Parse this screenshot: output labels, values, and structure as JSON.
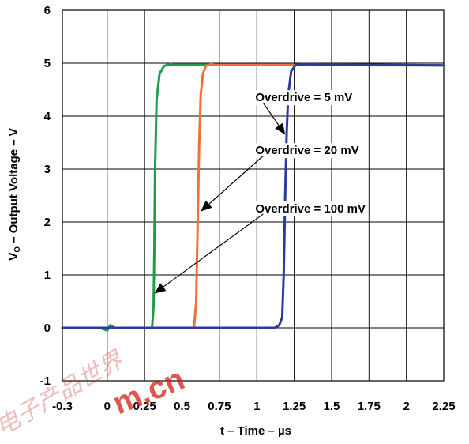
{
  "chart_data": {
    "type": "line",
    "xlabel": "t – Time – µs",
    "ylabel_main": "V",
    "ylabel_sub": "O",
    "ylabel_rest": " – Output Voltage – V",
    "xlim": [
      -0.3,
      2.25
    ],
    "ylim": [
      -1,
      6
    ],
    "x_ticks": [
      -0.3,
      0,
      0.25,
      0.5,
      0.75,
      1,
      1.25,
      1.5,
      1.75,
      2,
      2.25
    ],
    "x_tick_labels": [
      "-0.3",
      "0",
      "0.25",
      "0.5",
      "0.75",
      "1",
      "1.25",
      "1.5",
      "1.75",
      "2",
      "2.25"
    ],
    "y_ticks": [
      -1,
      0,
      1,
      2,
      3,
      4,
      5,
      6
    ],
    "y_tick_labels": [
      "-1",
      "0",
      "1",
      "2",
      "3",
      "4",
      "5",
      "6"
    ],
    "grid": true,
    "series": [
      {
        "color": "#1f9a4b",
        "x": [
          -0.3,
          -0.05,
          0.0,
          0.02,
          0.05,
          0.3,
          0.31,
          0.315,
          0.32,
          0.33,
          0.35,
          0.38,
          0.42,
          0.45,
          2.25
        ],
        "y": [
          0.0,
          0.0,
          -0.05,
          0.05,
          0.0,
          0.0,
          0.4,
          1.5,
          3.0,
          4.3,
          4.8,
          4.95,
          4.98,
          4.97,
          4.96
        ]
      },
      {
        "color": "#f0703a",
        "x": [
          -0.3,
          0.58,
          0.595,
          0.605,
          0.615,
          0.625,
          0.64,
          0.66,
          0.69,
          0.72,
          2.25
        ],
        "y": [
          0.0,
          0.0,
          0.5,
          2.0,
          3.5,
          4.4,
          4.8,
          4.95,
          4.98,
          4.97,
          4.96
        ]
      },
      {
        "color": "#2c3a9c",
        "x": [
          -0.3,
          1.12,
          1.15,
          1.17,
          1.18,
          1.19,
          1.2,
          1.21,
          1.23,
          1.26,
          1.3,
          2.25
        ],
        "y": [
          0.0,
          0.0,
          0.05,
          0.2,
          1.0,
          2.5,
          3.7,
          4.4,
          4.85,
          4.97,
          4.98,
          4.96
        ]
      }
    ],
    "annotations": [
      {
        "text": "Overdrive = 5 mV",
        "text_x": 0.99,
        "text_y": 4.28,
        "arrow_to_x": 1.19,
        "arrow_to_y": 3.65
      },
      {
        "text": "Overdrive = 20 mV",
        "text_x": 0.99,
        "text_y": 3.28,
        "arrow_to_x": 0.625,
        "arrow_to_y": 2.2
      },
      {
        "text": "Overdrive = 100 mV",
        "text_x": 0.99,
        "text_y": 2.18,
        "arrow_to_x": 0.315,
        "arrow_to_y": 0.65
      }
    ],
    "watermark": "电子产品世界 eepw.com.cn"
  }
}
